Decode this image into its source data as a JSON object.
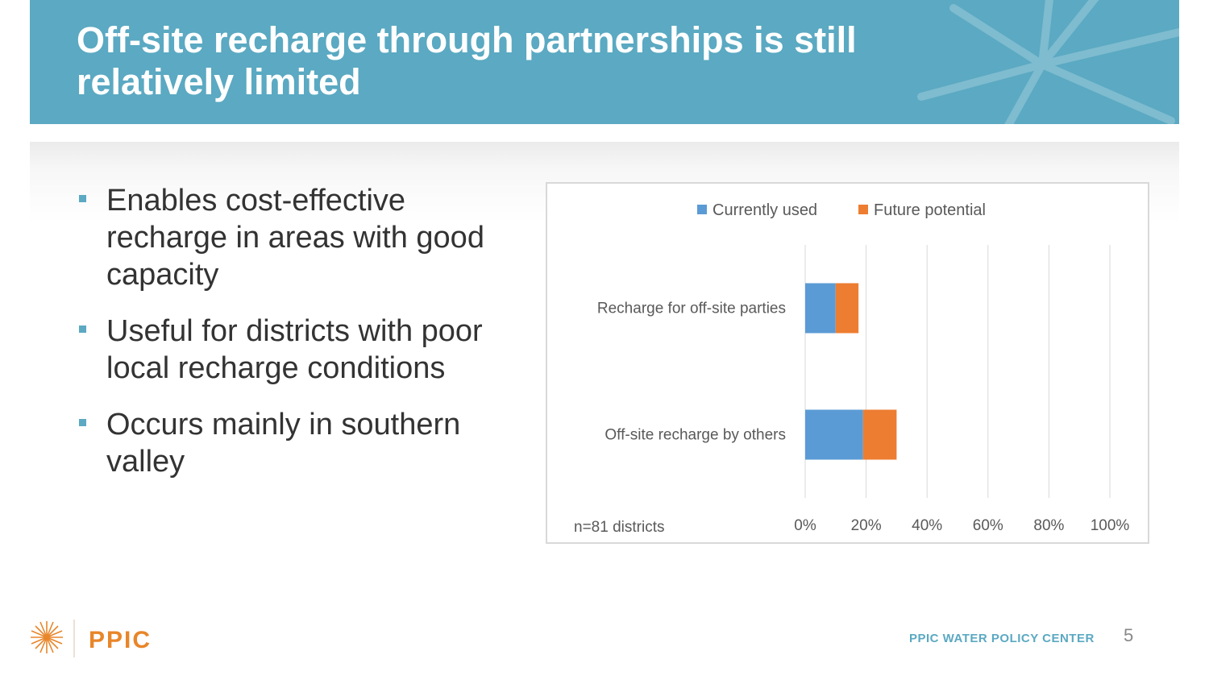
{
  "slide": {
    "title": "Off-site recharge through partnerships is still relatively limited",
    "bullets": [
      "Enables  cost-effective recharge in areas with good capacity",
      "Useful for districts with poor local recharge conditions",
      "Occurs mainly in southern valley"
    ],
    "footer_org": "PPIC WATER POLICY CENTER",
    "page_number": "5",
    "logo_text": "PPIC"
  },
  "colors": {
    "header": "#5ba9c2",
    "currently_used": "#5b9bd5",
    "future_potential": "#ed7d31",
    "logo_orange": "#e8862a"
  },
  "chart_data": {
    "type": "bar",
    "orientation": "horizontal",
    "stacked": true,
    "categories": [
      "Recharge for off-site parties",
      "Off-site recharge by others"
    ],
    "series": [
      {
        "name": "Currently used",
        "values": [
          10,
          19
        ]
      },
      {
        "name": "Future potential",
        "values": [
          7.5,
          11
        ]
      }
    ],
    "xlim": [
      0,
      100
    ],
    "xticks": [
      "0%",
      "20%",
      "40%",
      "60%",
      "80%",
      "100%"
    ],
    "legend_position": "top",
    "grid": "vertical",
    "note": "n=81 districts"
  }
}
